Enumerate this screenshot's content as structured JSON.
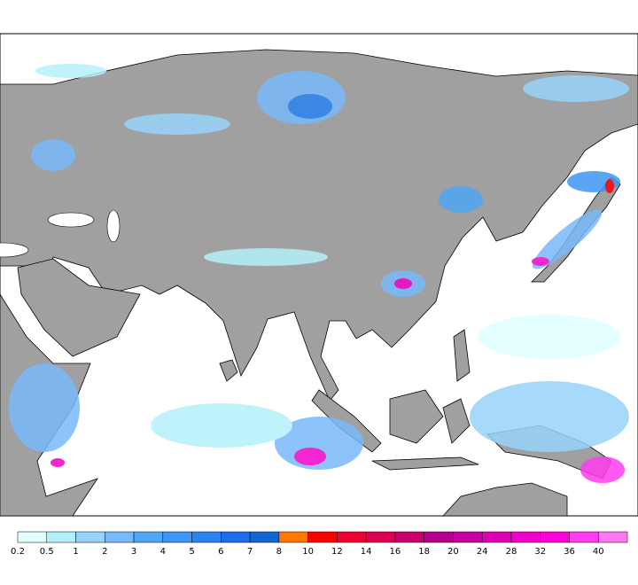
{
  "legend": {
    "ticks": [
      0.2,
      0.5,
      1,
      2,
      3,
      4,
      5,
      6,
      7,
      8,
      10,
      12,
      14,
      16,
      18,
      20,
      24,
      28,
      32,
      36,
      40
    ],
    "colors": [
      "#e0ffff",
      "#b4f0fa",
      "#96d2fa",
      "#78b9fa",
      "#50a5f5",
      "#3c96f5",
      "#2882f0",
      "#1e6eeb",
      "#1464d2",
      "#ff7800",
      "#fa0000",
      "#f00032",
      "#dc0050",
      "#c8006e",
      "#b4008c",
      "#c800a0",
      "#dc00b4",
      "#f000c8",
      "#ff00dc",
      "#ff3cf0",
      "#ff78f0"
    ]
  }
}
